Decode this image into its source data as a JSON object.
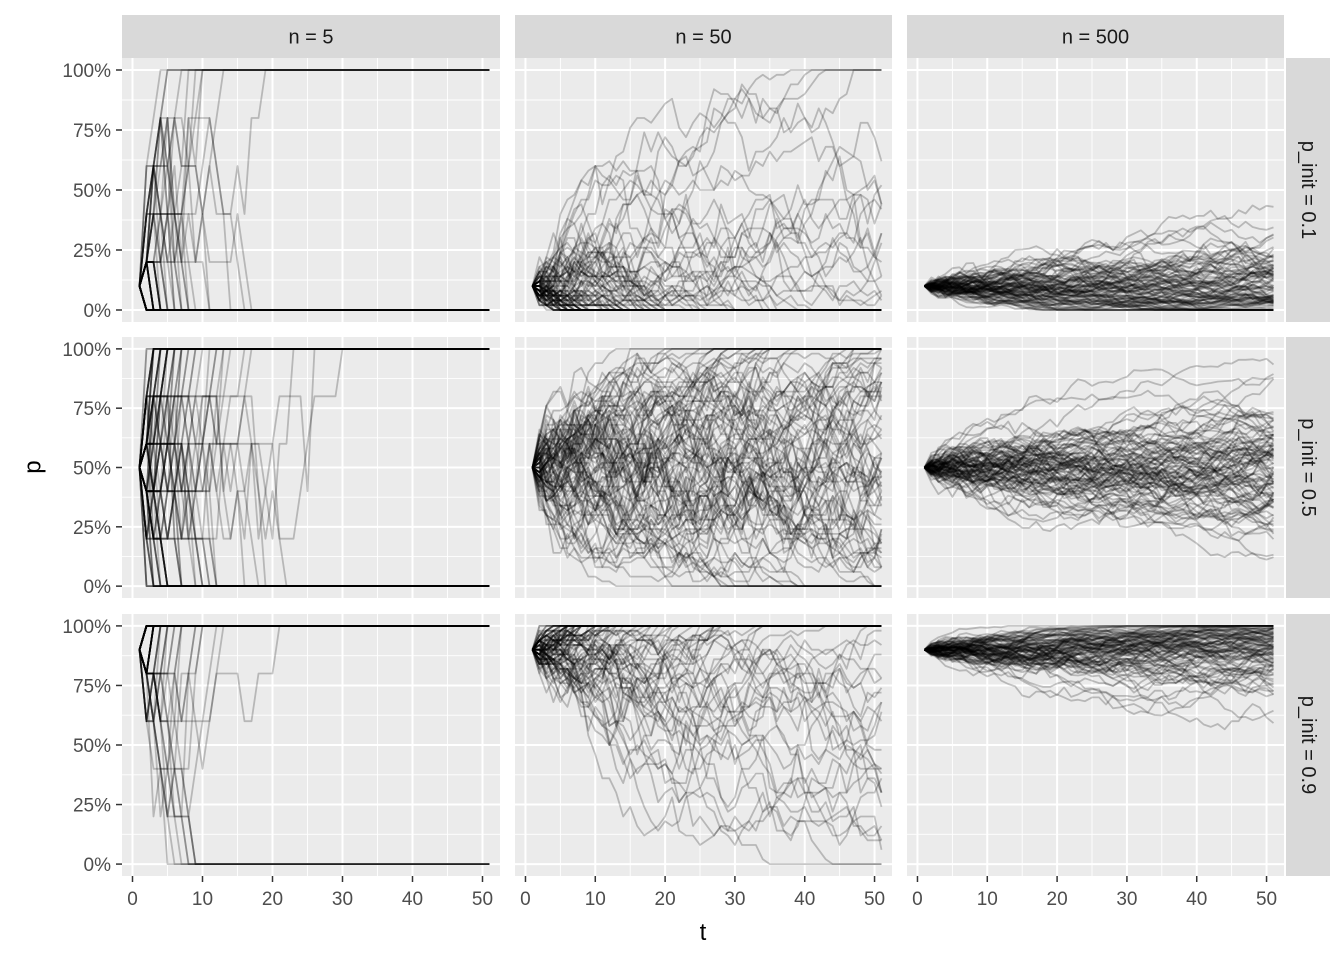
{
  "chart_data": {
    "type": "line",
    "layout": "facet_grid",
    "xlabel": "t",
    "ylabel": "p",
    "xlim": [
      -1.5,
      52.5
    ],
    "ylim": [
      -0.05,
      1.05
    ],
    "x_ticks": [
      0,
      10,
      20,
      30,
      40,
      50
    ],
    "x_tick_labels": [
      "0",
      "10",
      "20",
      "30",
      "40",
      "50"
    ],
    "y_ticks": [
      0,
      0.25,
      0.5,
      0.75,
      1.0
    ],
    "y_tick_labels": [
      "0%",
      "25%",
      "50%",
      "75%",
      "100%"
    ],
    "grid": true,
    "line_color": "#000000",
    "line_alpha": 0.22,
    "panel_background": "#ebebeb",
    "strip_background": "#d9d9d9",
    "col_strips": [
      "n =  5",
      "n =  50",
      "n =  500"
    ],
    "row_strips": [
      "p_init =  0.1",
      "p_init =  0.5",
      "p_init =  0.9"
    ],
    "col_values": [
      5,
      50,
      500
    ],
    "row_values": [
      0.1,
      0.5,
      0.9
    ],
    "t_range": [
      1,
      51
    ],
    "lines_per_panel": 100,
    "description": "Wright-Fisher genetic drift simulations: allele frequency p over generations t, one facet per population size n and initial frequency p_init"
  }
}
